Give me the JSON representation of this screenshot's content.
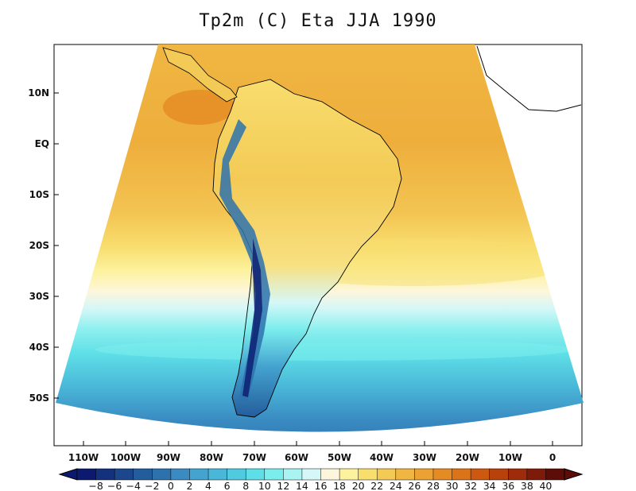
{
  "title": "Tp2m (C) Eta JJA 1990",
  "map": {
    "lat_ticks": [
      "10N",
      "EQ",
      "10S",
      "20S",
      "30S",
      "40S",
      "50S"
    ],
    "lon_ticks": [
      "110W",
      "100W",
      "90W",
      "80W",
      "70W",
      "60W",
      "50W",
      "40W",
      "30W",
      "20W",
      "10W",
      "0"
    ],
    "domain": "South America (Eta model regional domain)",
    "variable": "2 m temperature"
  },
  "colorbar": {
    "labels": [
      "−8",
      "−6",
      "−4",
      "−2",
      "0",
      "2",
      "4",
      "6",
      "8",
      "10",
      "12",
      "14",
      "16",
      "18",
      "20",
      "22",
      "24",
      "26",
      "28",
      "30",
      "32",
      "34",
      "36",
      "38",
      "40"
    ],
    "colors": [
      "#0b1a6e",
      "#14317d",
      "#1c478c",
      "#245d9c",
      "#2d72ad",
      "#3a8bc2",
      "#44a3cf",
      "#4ab7d8",
      "#50cadf",
      "#5edfe7",
      "#7beded",
      "#a9f3f3",
      "#d6f7f7",
      "#fdf6dc",
      "#fdf29e",
      "#f8de6c",
      "#f3ca55",
      "#f0b642",
      "#eca232",
      "#e48b23",
      "#db7318",
      "#cd5810",
      "#b8410c",
      "#9e2c0a",
      "#7d1a09",
      "#5c0d08"
    ]
  }
}
